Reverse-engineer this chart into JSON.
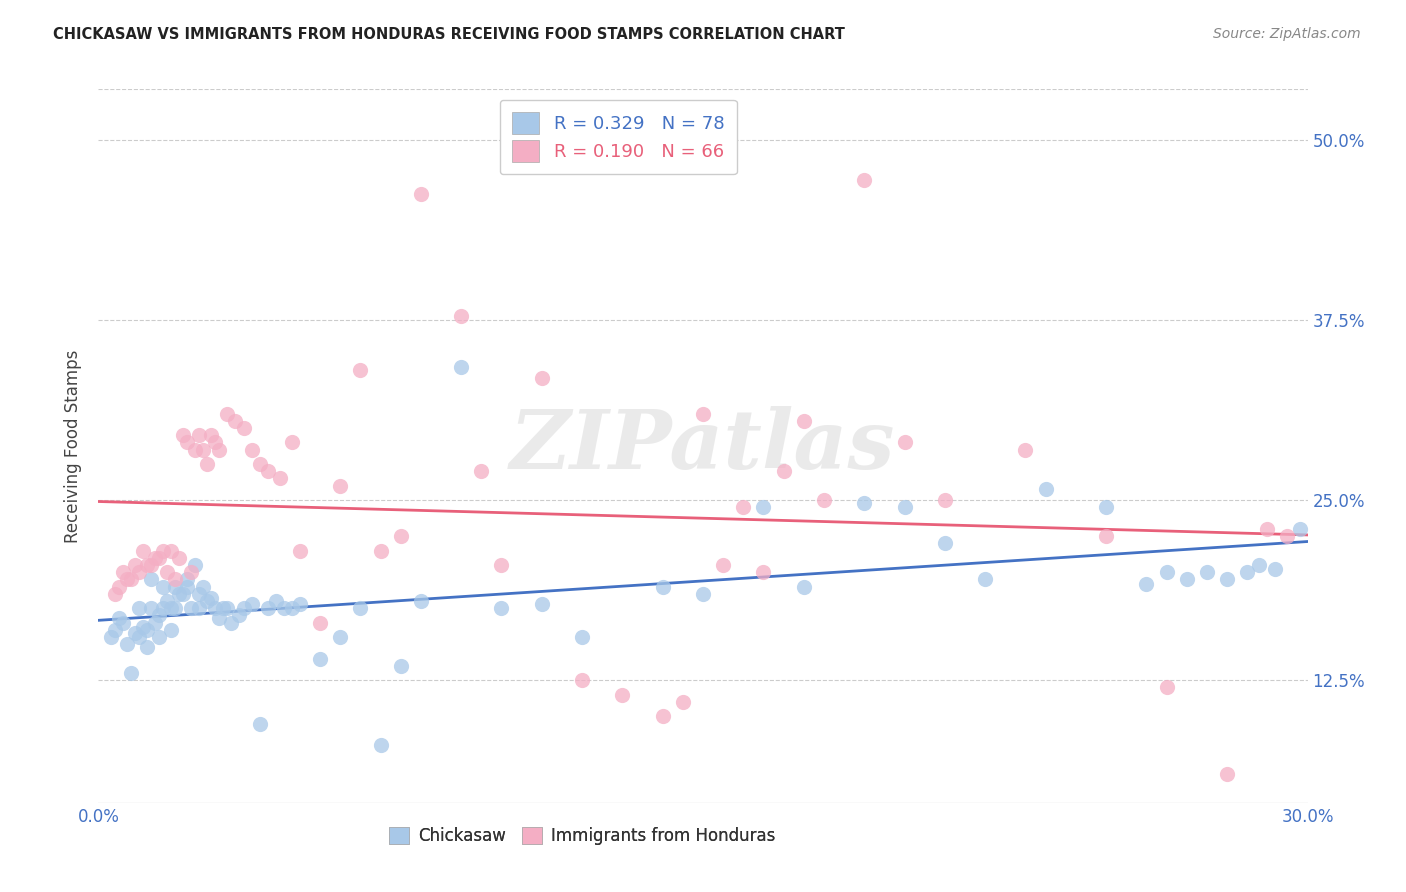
{
  "title": "CHICKASAW VS IMMIGRANTS FROM HONDURAS RECEIVING FOOD STAMPS CORRELATION CHART",
  "source": "Source: ZipAtlas.com",
  "ylabel": "Receiving Food Stamps",
  "ytick_labels": [
    "12.5%",
    "25.0%",
    "37.5%",
    "50.0%"
  ],
  "ytick_values": [
    0.125,
    0.25,
    0.375,
    0.5
  ],
  "xlim": [
    0.0,
    0.3
  ],
  "ylim": [
    0.04,
    0.535
  ],
  "blue_R": 0.329,
  "blue_N": 78,
  "pink_R": 0.19,
  "pink_N": 66,
  "blue_color": "#a8c8e8",
  "pink_color": "#f4aec4",
  "blue_line_color": "#4472c4",
  "pink_line_color": "#e8607a",
  "legend_label_blue": "Chickasaw",
  "legend_label_pink": "Immigrants from Honduras",
  "watermark": "ZIPatlas",
  "blue_scatter_x": [
    0.003,
    0.004,
    0.005,
    0.006,
    0.007,
    0.008,
    0.009,
    0.01,
    0.01,
    0.011,
    0.012,
    0.012,
    0.013,
    0.013,
    0.014,
    0.015,
    0.015,
    0.016,
    0.016,
    0.017,
    0.018,
    0.018,
    0.019,
    0.019,
    0.02,
    0.021,
    0.022,
    0.022,
    0.023,
    0.024,
    0.025,
    0.025,
    0.026,
    0.027,
    0.028,
    0.029,
    0.03,
    0.031,
    0.032,
    0.033,
    0.035,
    0.036,
    0.038,
    0.04,
    0.042,
    0.044,
    0.046,
    0.048,
    0.05,
    0.055,
    0.06,
    0.065,
    0.07,
    0.075,
    0.08,
    0.09,
    0.1,
    0.11,
    0.12,
    0.14,
    0.15,
    0.165,
    0.175,
    0.19,
    0.2,
    0.21,
    0.22,
    0.235,
    0.25,
    0.26,
    0.265,
    0.27,
    0.275,
    0.28,
    0.285,
    0.288,
    0.292,
    0.298
  ],
  "blue_scatter_y": [
    0.155,
    0.16,
    0.168,
    0.165,
    0.15,
    0.13,
    0.158,
    0.155,
    0.175,
    0.162,
    0.16,
    0.148,
    0.175,
    0.195,
    0.165,
    0.17,
    0.155,
    0.175,
    0.19,
    0.18,
    0.175,
    0.16,
    0.175,
    0.19,
    0.185,
    0.185,
    0.19,
    0.195,
    0.175,
    0.205,
    0.185,
    0.175,
    0.19,
    0.18,
    0.182,
    0.175,
    0.168,
    0.175,
    0.175,
    0.165,
    0.17,
    0.175,
    0.178,
    0.095,
    0.175,
    0.18,
    0.175,
    0.175,
    0.178,
    0.14,
    0.155,
    0.175,
    0.08,
    0.135,
    0.18,
    0.342,
    0.175,
    0.178,
    0.155,
    0.19,
    0.185,
    0.245,
    0.19,
    0.248,
    0.245,
    0.22,
    0.195,
    0.258,
    0.245,
    0.192,
    0.2,
    0.195,
    0.2,
    0.195,
    0.2,
    0.205,
    0.202,
    0.23
  ],
  "pink_scatter_x": [
    0.004,
    0.005,
    0.006,
    0.007,
    0.008,
    0.009,
    0.01,
    0.011,
    0.012,
    0.013,
    0.014,
    0.015,
    0.016,
    0.017,
    0.018,
    0.019,
    0.02,
    0.021,
    0.022,
    0.023,
    0.024,
    0.025,
    0.026,
    0.027,
    0.028,
    0.029,
    0.03,
    0.032,
    0.034,
    0.036,
    0.038,
    0.04,
    0.042,
    0.045,
    0.048,
    0.05,
    0.055,
    0.06,
    0.065,
    0.07,
    0.075,
    0.08,
    0.09,
    0.095,
    0.1,
    0.11,
    0.12,
    0.13,
    0.14,
    0.15,
    0.16,
    0.17,
    0.18,
    0.19,
    0.2,
    0.21,
    0.23,
    0.25,
    0.265,
    0.28,
    0.29,
    0.295,
    0.145,
    0.155,
    0.165,
    0.175
  ],
  "pink_scatter_y": [
    0.185,
    0.19,
    0.2,
    0.195,
    0.195,
    0.205,
    0.2,
    0.215,
    0.205,
    0.205,
    0.21,
    0.21,
    0.215,
    0.2,
    0.215,
    0.195,
    0.21,
    0.295,
    0.29,
    0.2,
    0.285,
    0.295,
    0.285,
    0.275,
    0.295,
    0.29,
    0.285,
    0.31,
    0.305,
    0.3,
    0.285,
    0.275,
    0.27,
    0.265,
    0.29,
    0.215,
    0.165,
    0.26,
    0.34,
    0.215,
    0.225,
    0.462,
    0.378,
    0.27,
    0.205,
    0.335,
    0.125,
    0.115,
    0.1,
    0.31,
    0.245,
    0.27,
    0.25,
    0.472,
    0.29,
    0.25,
    0.285,
    0.225,
    0.12,
    0.06,
    0.23,
    0.225,
    0.11,
    0.205,
    0.2,
    0.305
  ]
}
